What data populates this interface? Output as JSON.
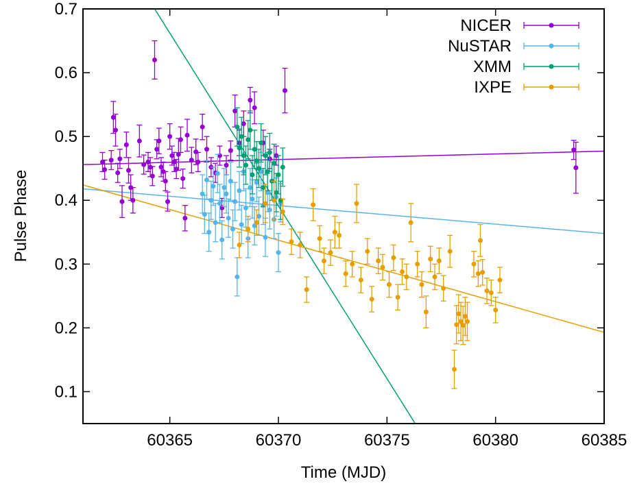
{
  "chart_data": {
    "type": "scatter",
    "title": "",
    "xlabel": "Time (MJD)",
    "ylabel": "Pulse Phase",
    "xlim": [
      60361,
      60385
    ],
    "ylim": [
      0.05,
      0.7
    ],
    "xticks": [
      60365,
      60370,
      60375,
      60380,
      60385
    ],
    "yticks": [
      0.1,
      0.2,
      0.3,
      0.4,
      0.5,
      0.6,
      0.7
    ],
    "grid": false,
    "legend_position": "top-right",
    "series": [
      {
        "name": "NICER",
        "color": "#9400D3",
        "fit": {
          "x": [
            60361,
            60385
          ],
          "y": [
            0.456,
            0.477
          ]
        },
        "points": [
          [
            60361.9,
            0.46,
            0.015
          ],
          [
            60362.0,
            0.448,
            0.015
          ],
          [
            60362.3,
            0.463,
            0.015
          ],
          [
            60362.4,
            0.53,
            0.025
          ],
          [
            60362.5,
            0.51,
            0.025
          ],
          [
            60362.6,
            0.443,
            0.015
          ],
          [
            60362.7,
            0.465,
            0.015
          ],
          [
            60362.8,
            0.398,
            0.025
          ],
          [
            60363.0,
            0.487,
            0.02
          ],
          [
            60363.1,
            0.447,
            0.02
          ],
          [
            60363.2,
            0.42,
            0.02
          ],
          [
            60363.3,
            0.4,
            0.02
          ],
          [
            60363.6,
            0.493,
            0.025
          ],
          [
            60363.8,
            0.456,
            0.015
          ],
          [
            60364.0,
            0.46,
            0.015
          ],
          [
            60364.1,
            0.452,
            0.015
          ],
          [
            60364.2,
            0.438,
            0.015
          ],
          [
            60364.3,
            0.62,
            0.03
          ],
          [
            60364.4,
            0.48,
            0.015
          ],
          [
            60364.5,
            0.493,
            0.02
          ],
          [
            60364.6,
            0.452,
            0.015
          ],
          [
            60364.7,
            0.445,
            0.015
          ],
          [
            60364.8,
            0.43,
            0.015
          ],
          [
            60364.9,
            0.398,
            0.015
          ],
          [
            60365.0,
            0.5,
            0.02
          ],
          [
            60365.1,
            0.47,
            0.015
          ],
          [
            60365.2,
            0.46,
            0.015
          ],
          [
            60365.3,
            0.449,
            0.015
          ],
          [
            60365.4,
            0.472,
            0.025
          ],
          [
            60365.5,
            0.495,
            0.02
          ],
          [
            60365.6,
            0.434,
            0.015
          ],
          [
            60365.7,
            0.372,
            0.02
          ],
          [
            60365.8,
            0.502,
            0.025
          ],
          [
            60366.0,
            0.463,
            0.02
          ],
          [
            60366.2,
            0.476,
            0.02
          ],
          [
            60366.3,
            0.46,
            0.015
          ],
          [
            60366.5,
            0.515,
            0.02
          ],
          [
            60366.7,
            0.48,
            0.02
          ],
          [
            60366.9,
            0.452,
            0.015
          ],
          [
            60367.1,
            0.443,
            0.015
          ],
          [
            60367.3,
            0.47,
            0.015
          ],
          [
            60367.4,
            0.388,
            0.015
          ],
          [
            60367.6,
            0.455,
            0.015
          ],
          [
            60367.8,
            0.478,
            0.015
          ],
          [
            60368.0,
            0.54,
            0.025
          ],
          [
            60368.2,
            0.49,
            0.02
          ],
          [
            60368.4,
            0.52,
            0.02
          ],
          [
            60368.7,
            0.557,
            0.02
          ],
          [
            60368.9,
            0.545,
            0.025
          ],
          [
            60369.3,
            0.49,
            0.02
          ],
          [
            60369.6,
            0.465,
            0.015
          ],
          [
            60369.9,
            0.47,
            0.015
          ],
          [
            60370.3,
            0.572,
            0.035
          ],
          [
            60383.6,
            0.479,
            0.015
          ],
          [
            60383.7,
            0.451,
            0.04
          ]
        ]
      },
      {
        "name": "NuSTAR",
        "color": "#56B4E9",
        "fit": {
          "x": [
            60361,
            60385
          ],
          "y": [
            0.418,
            0.348
          ]
        },
        "points": [
          [
            60366.5,
            0.41,
            0.03
          ],
          [
            60366.6,
            0.378,
            0.03
          ],
          [
            60366.7,
            0.432,
            0.03
          ],
          [
            60366.8,
            0.35,
            0.03
          ],
          [
            60366.9,
            0.4,
            0.03
          ],
          [
            60367.0,
            0.422,
            0.03
          ],
          [
            60367.1,
            0.365,
            0.03
          ],
          [
            60367.2,
            0.442,
            0.03
          ],
          [
            60367.3,
            0.395,
            0.03
          ],
          [
            60367.4,
            0.338,
            0.03
          ],
          [
            60367.5,
            0.42,
            0.03
          ],
          [
            60367.6,
            0.41,
            0.03
          ],
          [
            60367.7,
            0.372,
            0.03
          ],
          [
            60367.8,
            0.43,
            0.03
          ],
          [
            60367.9,
            0.355,
            0.03
          ],
          [
            60368.0,
            0.398,
            0.03
          ],
          [
            60368.1,
            0.28,
            0.03
          ],
          [
            60368.2,
            0.415,
            0.03
          ],
          [
            60368.3,
            0.362,
            0.03
          ],
          [
            60368.4,
            0.445,
            0.03
          ],
          [
            60368.5,
            0.388,
            0.03
          ],
          [
            60368.6,
            0.34,
            0.03
          ],
          [
            60368.7,
            0.42,
            0.03
          ],
          [
            60368.8,
            0.402,
            0.03
          ],
          [
            60368.9,
            0.36,
            0.03
          ],
          [
            60369.0,
            0.428,
            0.03
          ],
          [
            60369.1,
            0.375,
            0.03
          ],
          [
            60369.2,
            0.445,
            0.03
          ],
          [
            60369.3,
            0.392,
            0.03
          ],
          [
            60369.4,
            0.342,
            0.03
          ],
          [
            60369.5,
            0.412,
            0.03
          ],
          [
            60369.6,
            0.385,
            0.03
          ],
          [
            60369.7,
            0.43,
            0.03
          ],
          [
            60369.8,
            0.37,
            0.03
          ],
          [
            60369.9,
            0.405,
            0.03
          ],
          [
            60370.0,
            0.318,
            0.03
          ],
          [
            60370.1,
            0.396,
            0.03
          ]
        ]
      },
      {
        "name": "XMM",
        "color": "#009E73",
        "fit": {
          "x": [
            60364.3,
            60376.3
          ],
          "y": [
            0.7,
            0.05
          ]
        },
        "points": [
          [
            60368.1,
            0.515,
            0.03
          ],
          [
            60368.2,
            0.482,
            0.03
          ],
          [
            60368.3,
            0.5,
            0.03
          ],
          [
            60368.4,
            0.47,
            0.03
          ],
          [
            60368.5,
            0.455,
            0.03
          ],
          [
            60368.6,
            0.495,
            0.03
          ],
          [
            60368.7,
            0.51,
            0.03
          ],
          [
            60368.8,
            0.44,
            0.03
          ],
          [
            60368.9,
            0.48,
            0.03
          ],
          [
            60369.0,
            0.462,
            0.03
          ],
          [
            60369.1,
            0.45,
            0.03
          ],
          [
            60369.2,
            0.49,
            0.03
          ],
          [
            60369.3,
            0.42,
            0.03
          ],
          [
            60369.4,
            0.47,
            0.03
          ],
          [
            60369.5,
            0.445,
            0.03
          ],
          [
            60369.6,
            0.475,
            0.03
          ],
          [
            60369.7,
            0.43,
            0.03
          ],
          [
            60369.8,
            0.458,
            0.03
          ],
          [
            60369.9,
            0.412,
            0.03
          ],
          [
            60370.0,
            0.44,
            0.03
          ],
          [
            60370.1,
            0.4,
            0.03
          ],
          [
            60370.2,
            0.452,
            0.03
          ]
        ]
      },
      {
        "name": "IXPE",
        "color": "#E69F00",
        "fit": {
          "x": [
            60361,
            60385
          ],
          "y": [
            0.424,
            0.193
          ]
        },
        "points": [
          [
            60368.2,
            0.33,
            0.02
          ],
          [
            60368.6,
            0.355,
            0.02
          ],
          [
            60369.0,
            0.365,
            0.02
          ],
          [
            60369.4,
            0.395,
            0.03
          ],
          [
            60369.8,
            0.4,
            0.03
          ],
          [
            60370.2,
            0.382,
            0.02
          ],
          [
            60370.6,
            0.335,
            0.02
          ],
          [
            60371.0,
            0.33,
            0.02
          ],
          [
            60371.3,
            0.26,
            0.02
          ],
          [
            60371.6,
            0.393,
            0.025
          ],
          [
            60371.9,
            0.34,
            0.02
          ],
          [
            60372.1,
            0.305,
            0.02
          ],
          [
            60372.4,
            0.318,
            0.02
          ],
          [
            60372.6,
            0.35,
            0.025
          ],
          [
            60372.8,
            0.345,
            0.02
          ],
          [
            60373.1,
            0.285,
            0.02
          ],
          [
            60373.4,
            0.3,
            0.02
          ],
          [
            60373.6,
            0.395,
            0.03
          ],
          [
            60373.8,
            0.275,
            0.02
          ],
          [
            60374.1,
            0.32,
            0.02
          ],
          [
            60374.3,
            0.245,
            0.02
          ],
          [
            60374.6,
            0.305,
            0.02
          ],
          [
            60374.8,
            0.295,
            0.02
          ],
          [
            60375.1,
            0.268,
            0.02
          ],
          [
            60375.3,
            0.31,
            0.02
          ],
          [
            60375.5,
            0.248,
            0.02
          ],
          [
            60375.7,
            0.288,
            0.02
          ],
          [
            60375.9,
            0.28,
            0.02
          ],
          [
            60376.1,
            0.365,
            0.03
          ],
          [
            60376.4,
            0.3,
            0.02
          ],
          [
            60376.6,
            0.268,
            0.02
          ],
          [
            60376.8,
            0.225,
            0.025
          ],
          [
            60377.0,
            0.308,
            0.02
          ],
          [
            60377.2,
            0.28,
            0.02
          ],
          [
            60377.4,
            0.305,
            0.02
          ],
          [
            60377.6,
            0.262,
            0.02
          ],
          [
            60377.9,
            0.32,
            0.025
          ],
          [
            60378.1,
            0.135,
            0.03
          ],
          [
            60378.2,
            0.205,
            0.03
          ],
          [
            60378.3,
            0.222,
            0.03
          ],
          [
            60378.4,
            0.21,
            0.03
          ],
          [
            60378.5,
            0.204,
            0.03
          ],
          [
            60378.6,
            0.218,
            0.03
          ],
          [
            60378.7,
            0.21,
            0.03
          ],
          [
            60379.0,
            0.3,
            0.02
          ],
          [
            60379.2,
            0.285,
            0.02
          ],
          [
            60379.3,
            0.337,
            0.025
          ],
          [
            60379.4,
            0.287,
            0.02
          ],
          [
            60379.6,
            0.258,
            0.02
          ],
          [
            60379.8,
            0.255,
            0.02
          ],
          [
            60380.0,
            0.228,
            0.02
          ],
          [
            60380.2,
            0.275,
            0.02
          ]
        ]
      }
    ]
  }
}
